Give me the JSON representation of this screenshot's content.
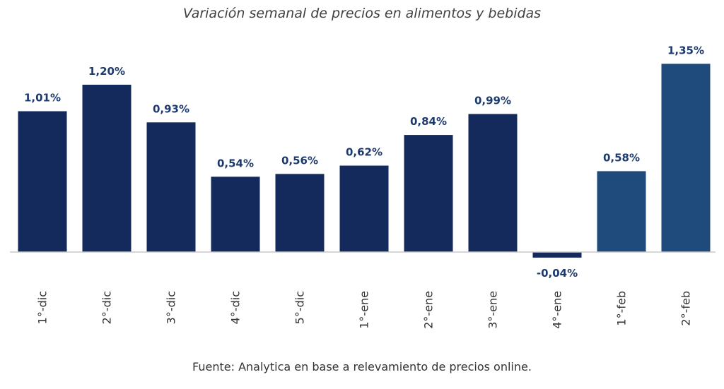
{
  "chart_data": {
    "type": "bar",
    "title": "Variación semanal de precios en alimentos y bebidas",
    "source": "Fuente: Analytica en base a relevamiento de precios online.",
    "categories": [
      "1°-dic",
      "2°-dic",
      "3°-dic",
      "4°-dic",
      "5°-dic",
      "1°-ene",
      "2°-ene",
      "3°-ene",
      "4°-ene",
      "1°-feb",
      "2°-feb"
    ],
    "values": [
      1.01,
      1.2,
      0.93,
      0.54,
      0.56,
      0.62,
      0.84,
      0.99,
      -0.04,
      0.58,
      1.35
    ],
    "value_labels": [
      "1,01%",
      "1,20%",
      "0,93%",
      "0,54%",
      "0,56%",
      "0,62%",
      "0,84%",
      "0,99%",
      "-0,04%",
      "0,58%",
      "1,35%"
    ],
    "xlabel": "",
    "ylabel": "",
    "ylim": [
      -0.04,
      1.35
    ],
    "grid": false,
    "legend": "none",
    "colors": {
      "primary": "#142a5c",
      "highlight": "#1f4a7c",
      "label": "#1c3a6e",
      "axis": "#c8c8c8"
    },
    "highlight_categories": [
      "1°-feb",
      "2°-feb"
    ]
  }
}
